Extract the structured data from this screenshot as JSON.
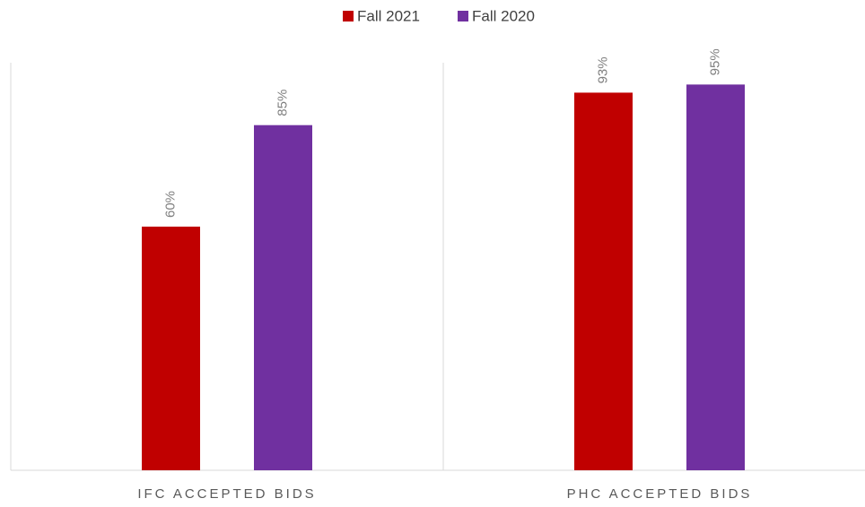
{
  "chart_data": {
    "type": "bar",
    "categories": [
      "IFC ACCEPTED BIDS",
      "PHC ACCEPTED BIDS"
    ],
    "series": [
      {
        "name": "Fall 2021",
        "color": "#c00000",
        "values": [
          60,
          93
        ],
        "value_labels": [
          "60%",
          "93%"
        ]
      },
      {
        "name": "Fall 2020",
        "color": "#7030a0",
        "values": [
          85,
          95
        ],
        "value_labels": [
          "85%",
          "95%"
        ]
      }
    ],
    "legend": "top"
  }
}
